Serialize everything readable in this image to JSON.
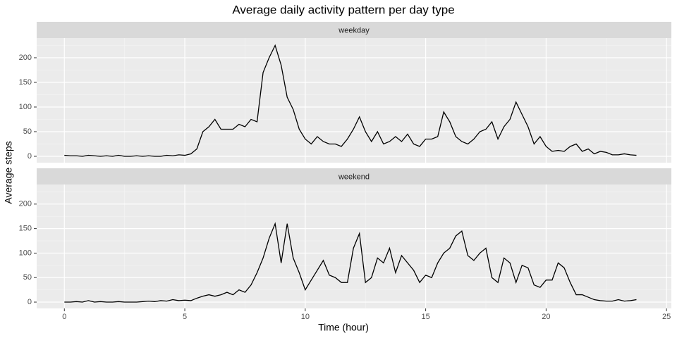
{
  "chart_data": {
    "type": "line",
    "title": "Average daily activity pattern per day type",
    "xlabel": "Time (hour)",
    "ylabel": "Average steps",
    "color": "#000000",
    "grid": true,
    "xlim": [
      -1.15,
      25.2
    ],
    "xticks": [
      0,
      5,
      10,
      15,
      20,
      25
    ],
    "ylim": [
      -12.9,
      240
    ],
    "yticks": [
      0,
      50,
      100,
      150,
      200
    ],
    "x": [
      0,
      0.25,
      0.5,
      0.75,
      1,
      1.25,
      1.5,
      1.75,
      2,
      2.25,
      2.5,
      2.75,
      3,
      3.25,
      3.5,
      3.75,
      4,
      4.25,
      4.5,
      4.75,
      5,
      5.25,
      5.5,
      5.75,
      6,
      6.25,
      6.5,
      6.75,
      7,
      7.25,
      7.5,
      7.75,
      8,
      8.25,
      8.5,
      8.75,
      9,
      9.25,
      9.5,
      9.75,
      10,
      10.25,
      10.5,
      10.75,
      11,
      11.25,
      11.5,
      11.75,
      12,
      12.25,
      12.5,
      12.75,
      13,
      13.25,
      13.5,
      13.75,
      14,
      14.25,
      14.5,
      14.75,
      15,
      15.25,
      15.5,
      15.75,
      16,
      16.25,
      16.5,
      16.75,
      17,
      17.25,
      17.5,
      17.75,
      18,
      18.25,
      18.5,
      18.75,
      19,
      19.25,
      19.5,
      19.75,
      20,
      20.25,
      20.5,
      20.75,
      21,
      21.25,
      21.5,
      21.75,
      22,
      22.25,
      22.5,
      22.75,
      23,
      23.25,
      23.5,
      23.75
    ],
    "panels": [
      {
        "strip": "weekday",
        "values": [
          2,
          1,
          1,
          0,
          2,
          1,
          0,
          1,
          0,
          2,
          0,
          0,
          1,
          0,
          1,
          0,
          0,
          2,
          1,
          3,
          2,
          5,
          15,
          50,
          60,
          75,
          55,
          55,
          55,
          65,
          60,
          75,
          70,
          170,
          200,
          225,
          185,
          120,
          95,
          55,
          35,
          25,
          40,
          30,
          25,
          25,
          20,
          35,
          55,
          80,
          50,
          30,
          50,
          25,
          30,
          40,
          30,
          45,
          25,
          20,
          35,
          35,
          40,
          90,
          70,
          40,
          30,
          25,
          35,
          50,
          55,
          70,
          35,
          60,
          75,
          110,
          85,
          60,
          25,
          40,
          20,
          10,
          12,
          10,
          20,
          25,
          10,
          15,
          5,
          10,
          8,
          3,
          3,
          5,
          3,
          2
        ]
      },
      {
        "strip": "weekend",
        "values": [
          0,
          0,
          1,
          0,
          3,
          0,
          1,
          0,
          0,
          1,
          0,
          0,
          0,
          1,
          2,
          1,
          3,
          2,
          5,
          3,
          4,
          3,
          8,
          12,
          15,
          12,
          15,
          20,
          15,
          25,
          20,
          35,
          60,
          90,
          130,
          160,
          80,
          160,
          90,
          60,
          25,
          45,
          65,
          85,
          55,
          50,
          40,
          40,
          110,
          140,
          40,
          50,
          90,
          80,
          110,
          60,
          95,
          80,
          65,
          40,
          55,
          50,
          80,
          100,
          110,
          135,
          145,
          95,
          85,
          100,
          110,
          50,
          40,
          90,
          80,
          40,
          75,
          70,
          35,
          30,
          45,
          45,
          80,
          70,
          40,
          15,
          15,
          10,
          5,
          3,
          2,
          2,
          5,
          2,
          3,
          5
        ]
      }
    ]
  }
}
